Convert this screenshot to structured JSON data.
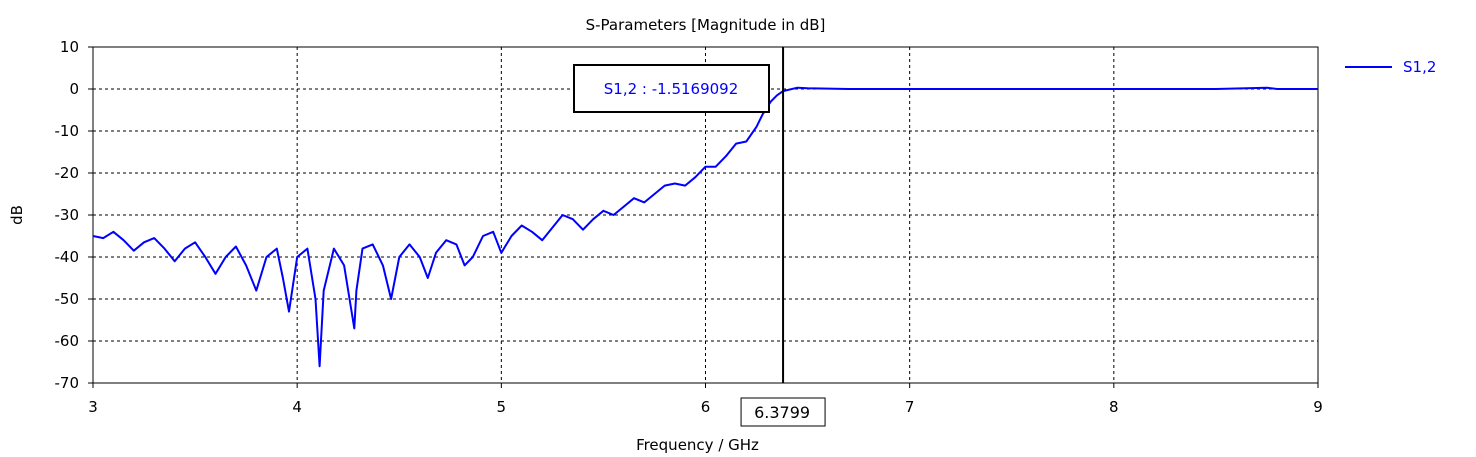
{
  "chart_data": {
    "type": "line",
    "title": "S-Parameters [Magnitude in dB]",
    "xlabel": "Frequency / GHz",
    "ylabel": "dB",
    "xlim": [
      3,
      9
    ],
    "ylim": [
      -70,
      10
    ],
    "xticks": [
      3,
      4,
      5,
      6,
      7,
      8,
      9
    ],
    "yticks": [
      10,
      0,
      -10,
      -20,
      -30,
      -40,
      -50,
      -60,
      -70
    ],
    "grid": true,
    "legend_position": "top-right",
    "series": [
      {
        "name": "S1,2",
        "color": "#0000ff",
        "x": [
          3.0,
          3.05,
          3.1,
          3.15,
          3.2,
          3.25,
          3.3,
          3.35,
          3.4,
          3.45,
          3.5,
          3.55,
          3.6,
          3.65,
          3.7,
          3.75,
          3.8,
          3.85,
          3.9,
          3.93,
          3.96,
          4.0,
          4.05,
          4.09,
          4.11,
          4.13,
          4.18,
          4.23,
          4.28,
          4.29,
          4.32,
          4.37,
          4.42,
          4.46,
          4.5,
          4.55,
          4.6,
          4.64,
          4.68,
          4.73,
          4.78,
          4.82,
          4.86,
          4.91,
          4.96,
          5.0,
          5.05,
          5.1,
          5.15,
          5.2,
          5.25,
          5.3,
          5.35,
          5.4,
          5.45,
          5.5,
          5.55,
          5.6,
          5.65,
          5.7,
          5.75,
          5.8,
          5.85,
          5.9,
          5.95,
          6.0,
          6.05,
          6.1,
          6.15,
          6.2,
          6.25,
          6.28,
          6.32,
          6.35,
          6.3799,
          6.45,
          6.5,
          6.6,
          6.7,
          7.0,
          7.5,
          8.0,
          8.5,
          8.75,
          8.8,
          9.0
        ],
        "y": [
          -35,
          -35.5,
          -34,
          -36,
          -38.5,
          -36.5,
          -35.5,
          -38,
          -41,
          -38,
          -36.5,
          -40,
          -44,
          -40,
          -37.5,
          -42,
          -48,
          -40,
          -38,
          -45,
          -53,
          -40,
          -38,
          -50,
          -66,
          -48,
          -38,
          -42,
          -57,
          -48,
          -38,
          -37,
          -42,
          -50,
          -40,
          -37,
          -40,
          -45,
          -39,
          -36,
          -37,
          -42,
          -40,
          -35,
          -34,
          -39,
          -35,
          -32.5,
          -34,
          -36,
          -33,
          -30,
          -31,
          -33.5,
          -31,
          -29,
          -30,
          -28,
          -26,
          -27,
          -25,
          -23,
          -22.5,
          -23,
          -21,
          -18.5,
          -18.5,
          -16,
          -13,
          -12.5,
          -9,
          -6,
          -3,
          -1.5,
          -0.5,
          0.3,
          0.2,
          0.1,
          0,
          0,
          0,
          0,
          0,
          0.3,
          0,
          0
        ]
      }
    ],
    "marker": {
      "label": "S1,2 : -1.5169092",
      "x": 6.37,
      "y": -1.5169092
    },
    "cursor": {
      "label": "6.3799",
      "x": 6.3799
    }
  }
}
